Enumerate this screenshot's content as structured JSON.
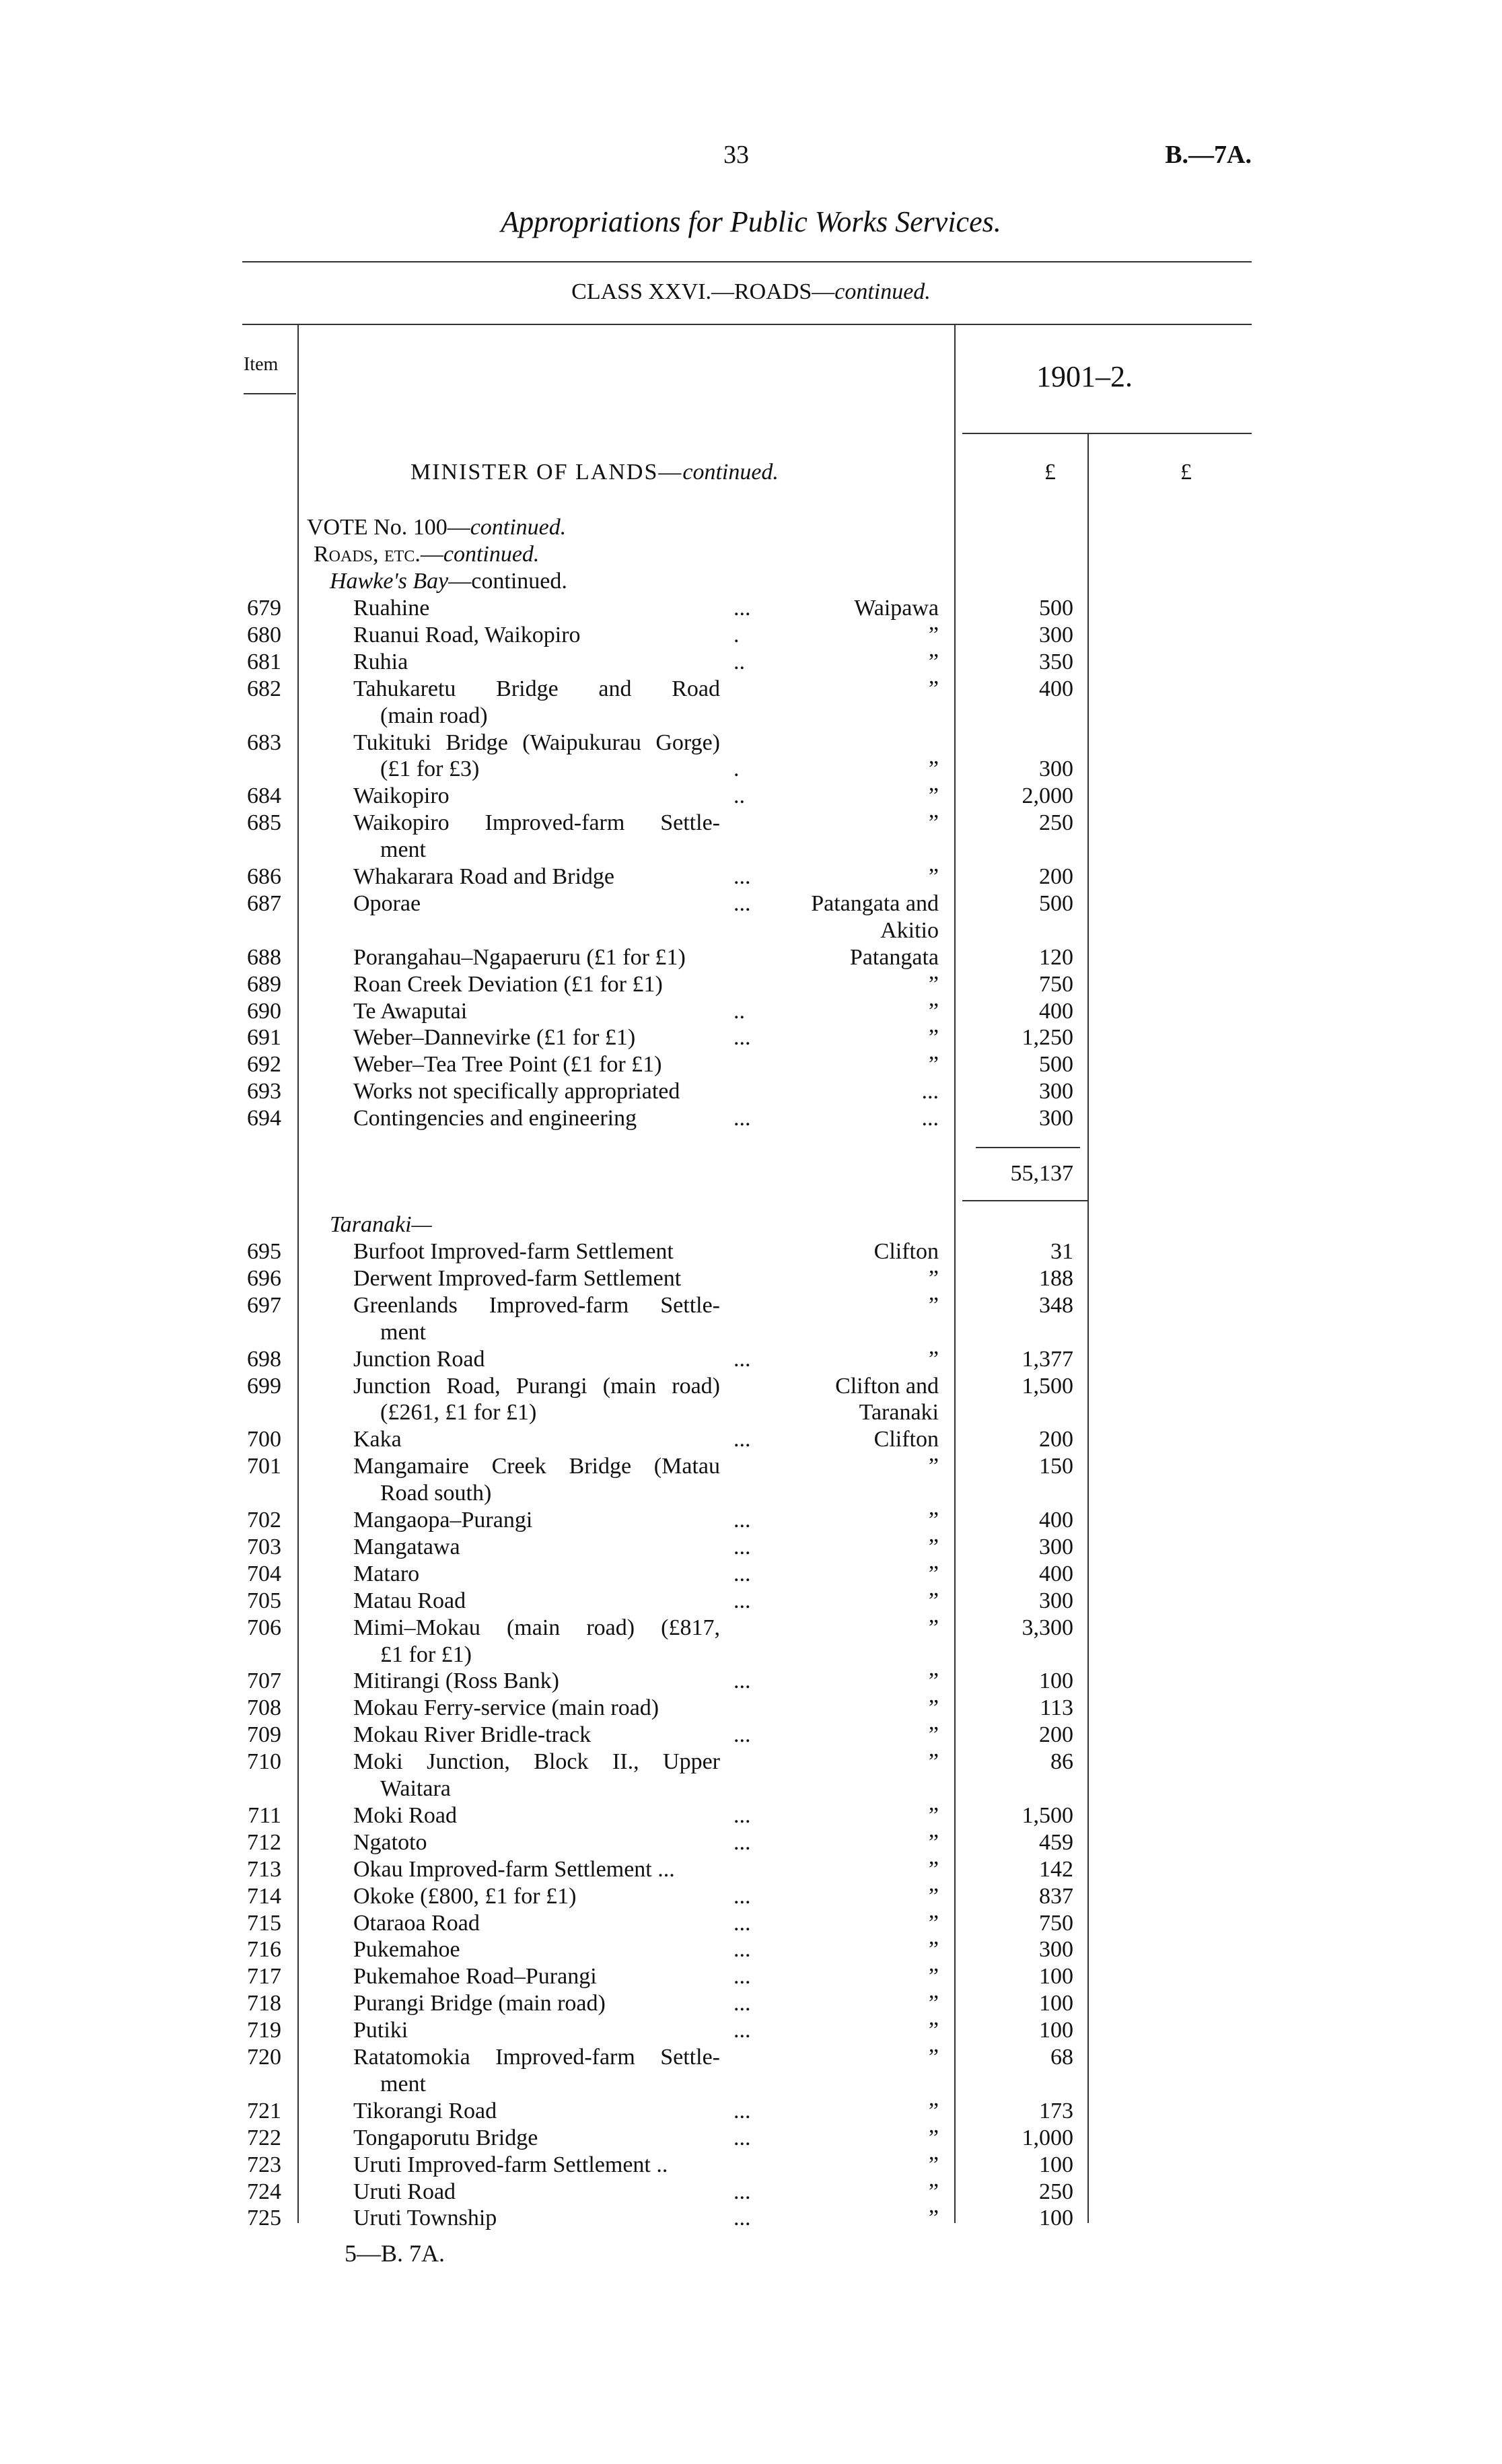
{
  "page_number": "33",
  "doc_ref": "B.—7A.",
  "title": "Appropriations for Public Works Services.",
  "class_heading": {
    "main": "CLASS XXVI.—ROADS—",
    "suffix": "continued."
  },
  "columns": {
    "item": "Item",
    "year": "1901–2.",
    "currency1": "£",
    "currency2": "£"
  },
  "ministry": {
    "main": "MINISTER OF LANDS—",
    "suffix": "continued."
  },
  "vote": {
    "main": "VOTE No. 100—",
    "suffix": "continued."
  },
  "subhead": {
    "main": "Roads, etc.—",
    "suffix": "continued."
  },
  "hawkes_bay": {
    "heading": {
      "main": "Hawke's Bay",
      "suffix": "—continued."
    },
    "items": [
      {
        "no": "679",
        "name": [
          "Ruahine"
        ],
        "leader": "...",
        "location": [
          "Waipawa"
        ],
        "amount": "500"
      },
      {
        "no": "680",
        "name": [
          "Ruanui Road, Waikopiro"
        ],
        "leader": ".",
        "location": [
          "”"
        ],
        "amount": "300"
      },
      {
        "no": "681",
        "name": [
          "Ruhia"
        ],
        "leader": "..",
        "location": [
          "”"
        ],
        "amount": "350"
      },
      {
        "no": "682",
        "name": [
          "Tahukaretu Bridge and Road",
          "(main road)"
        ],
        "leader": "",
        "location": [
          "”"
        ],
        "amount": "400"
      },
      {
        "no": "683",
        "name": [
          "Tukituki Bridge (Waipukurau Gorge)",
          "(£1 for £3)"
        ],
        "leader": ".",
        "location": [
          "",
          "”"
        ],
        "amount": "300"
      },
      {
        "no": "684",
        "name": [
          "Waikopiro"
        ],
        "leader": "..",
        "location": [
          "”"
        ],
        "amount": "2,000"
      },
      {
        "no": "685",
        "name": [
          "Waikopiro Improved-farm Settle-",
          "ment"
        ],
        "leader": "",
        "location": [
          "”"
        ],
        "amount": "250"
      },
      {
        "no": "686",
        "name": [
          "Whakarara Road and Bridge"
        ],
        "leader": "...",
        "location": [
          "”"
        ],
        "amount": "200"
      },
      {
        "no": "687",
        "name": [
          "Oporae"
        ],
        "leader": "...",
        "location": [
          "Patangata and",
          "Akitio"
        ],
        "amount": "500"
      },
      {
        "no": "688",
        "name": [
          "Porangahau–Ngapaeruru (£1 for £1)"
        ],
        "leader": "",
        "location": [
          "Patangata"
        ],
        "amount": "120"
      },
      {
        "no": "689",
        "name": [
          "Roan Creek Deviation (£1 for £1)"
        ],
        "leader": "",
        "location": [
          "”"
        ],
        "amount": "750"
      },
      {
        "no": "690",
        "name": [
          "Te Awaputai"
        ],
        "leader": "..",
        "location": [
          "”"
        ],
        "amount": "400"
      },
      {
        "no": "691",
        "name": [
          "Weber–Dannevirke (£1 for £1)"
        ],
        "leader": "...",
        "location": [
          "”"
        ],
        "amount": "1,250"
      },
      {
        "no": "692",
        "name": [
          "Weber–Tea Tree Point (£1 for £1)"
        ],
        "leader": "",
        "location": [
          "”"
        ],
        "amount": "500"
      },
      {
        "no": "693",
        "name": [
          "Works not specifically appropriated"
        ],
        "leader": "",
        "location": [
          "..."
        ],
        "amount": "300"
      },
      {
        "no": "694",
        "name": [
          "Contingencies and engineering"
        ],
        "leader": "...",
        "location": [
          "..."
        ],
        "amount": "300"
      }
    ],
    "total": "55,137"
  },
  "taranaki": {
    "heading": "Taranaki—",
    "items": [
      {
        "no": "695",
        "name": [
          "Burfoot Improved-farm Settlement"
        ],
        "leader": "",
        "location": [
          "Clifton"
        ],
        "amount": "31"
      },
      {
        "no": "696",
        "name": [
          "Derwent Improved-farm Settlement"
        ],
        "leader": "",
        "location": [
          "”"
        ],
        "amount": "188"
      },
      {
        "no": "697",
        "name": [
          "Greenlands Improved-farm Settle-",
          "ment"
        ],
        "leader": "",
        "location": [
          "”"
        ],
        "amount": "348"
      },
      {
        "no": "698",
        "name": [
          "Junction Road"
        ],
        "leader": "...",
        "location": [
          "”"
        ],
        "amount": "1,377"
      },
      {
        "no": "699",
        "name": [
          "Junction Road, Purangi (main road)",
          "(£261, £1 for £1)"
        ],
        "leader": "",
        "location": [
          "Clifton and",
          "Taranaki"
        ],
        "amount": "1,500"
      },
      {
        "no": "700",
        "name": [
          "Kaka"
        ],
        "leader": "...",
        "location": [
          "Clifton"
        ],
        "amount": "200"
      },
      {
        "no": "701",
        "name": [
          "Mangamaire Creek Bridge (Matau",
          "Road south)"
        ],
        "leader": "",
        "location": [
          "”"
        ],
        "amount": "150"
      },
      {
        "no": "702",
        "name": [
          "Mangaopa–Purangi"
        ],
        "leader": "...",
        "location": [
          "”"
        ],
        "amount": "400"
      },
      {
        "no": "703",
        "name": [
          "Mangatawa"
        ],
        "leader": "...",
        "location": [
          "”"
        ],
        "amount": "300"
      },
      {
        "no": "704",
        "name": [
          "Mataro"
        ],
        "leader": "...",
        "location": [
          "”"
        ],
        "amount": "400"
      },
      {
        "no": "705",
        "name": [
          "Matau Road"
        ],
        "leader": "...",
        "location": [
          "”"
        ],
        "amount": "300"
      },
      {
        "no": "706",
        "name": [
          "Mimi–Mokau (main road) (£817,",
          "£1 for £1)"
        ],
        "leader": "",
        "location": [
          "”"
        ],
        "amount": "3,300"
      },
      {
        "no": "707",
        "name": [
          "Mitirangi (Ross Bank)"
        ],
        "leader": "...",
        "location": [
          "”"
        ],
        "amount": "100"
      },
      {
        "no": "708",
        "name": [
          "Mokau Ferry-service (main road)"
        ],
        "leader": "",
        "location": [
          "”"
        ],
        "amount": "113"
      },
      {
        "no": "709",
        "name": [
          "Mokau River Bridle-track"
        ],
        "leader": "...",
        "location": [
          "”"
        ],
        "amount": "200"
      },
      {
        "no": "710",
        "name": [
          "Moki Junction, Block II., Upper",
          "Waitara"
        ],
        "leader": "",
        "location": [
          "”"
        ],
        "amount": "86"
      },
      {
        "no": "711",
        "name": [
          "Moki Road"
        ],
        "leader": "...",
        "location": [
          "”"
        ],
        "amount": "1,500"
      },
      {
        "no": "712",
        "name": [
          "Ngatoto"
        ],
        "leader": "...",
        "location": [
          "”"
        ],
        "amount": "459"
      },
      {
        "no": "713",
        "name": [
          "Okau Improved-farm Settlement ..."
        ],
        "leader": "",
        "location": [
          "”"
        ],
        "amount": "142"
      },
      {
        "no": "714",
        "name": [
          "Okoke (£800, £1 for £1)"
        ],
        "leader": "...",
        "location": [
          "”"
        ],
        "amount": "837"
      },
      {
        "no": "715",
        "name": [
          "Otaraoa Road"
        ],
        "leader": "...",
        "location": [
          "”"
        ],
        "amount": "750"
      },
      {
        "no": "716",
        "name": [
          "Pukemahoe"
        ],
        "leader": "...",
        "location": [
          "”"
        ],
        "amount": "300"
      },
      {
        "no": "717",
        "name": [
          "Pukemahoe Road–Purangi"
        ],
        "leader": "...",
        "location": [
          "”"
        ],
        "amount": "100"
      },
      {
        "no": "718",
        "name": [
          "Purangi Bridge (main road)"
        ],
        "leader": "...",
        "location": [
          "”"
        ],
        "amount": "100"
      },
      {
        "no": "719",
        "name": [
          "Putiki"
        ],
        "leader": "...",
        "location": [
          "”"
        ],
        "amount": "100"
      },
      {
        "no": "720",
        "name": [
          "Ratatomokia Improved-farm Settle-",
          "ment"
        ],
        "leader": "",
        "location": [
          "”"
        ],
        "amount": "68"
      },
      {
        "no": "721",
        "name": [
          "Tikorangi Road"
        ],
        "leader": "...",
        "location": [
          "”"
        ],
        "amount": "173"
      },
      {
        "no": "722",
        "name": [
          "Tongaporutu Bridge"
        ],
        "leader": "...",
        "location": [
          "”"
        ],
        "amount": "1,000"
      },
      {
        "no": "723",
        "name": [
          "Uruti Improved-farm Settlement .."
        ],
        "leader": "",
        "location": [
          "”"
        ],
        "amount": "100"
      },
      {
        "no": "724",
        "name": [
          "Uruti Road"
        ],
        "leader": "...",
        "location": [
          "”"
        ],
        "amount": "250"
      },
      {
        "no": "725",
        "name": [
          "Uruti Township"
        ],
        "leader": "...",
        "location": [
          "”"
        ],
        "amount": "100"
      }
    ]
  },
  "footer_signature": "5—B. 7A."
}
